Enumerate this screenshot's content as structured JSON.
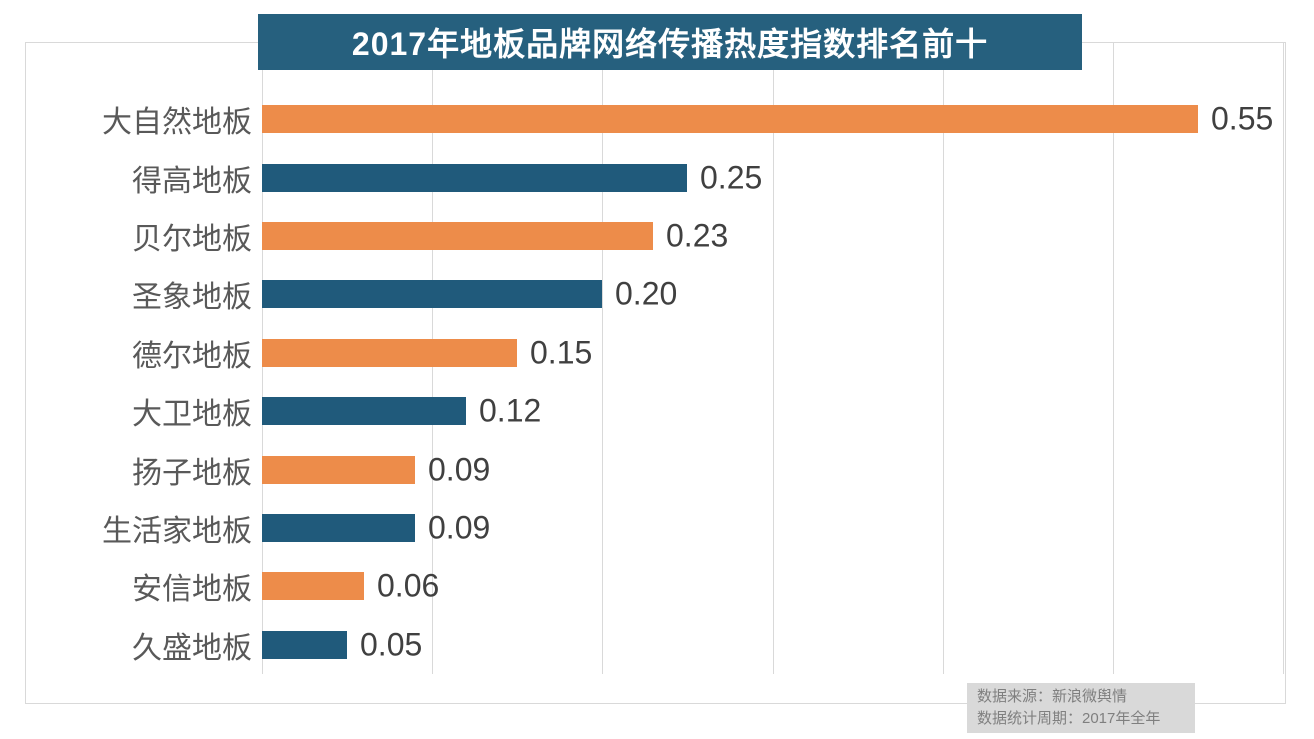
{
  "chart_data": {
    "type": "bar",
    "orientation": "horizontal",
    "title": "2017年地板品牌网络传播热度指数排名前十",
    "categories": [
      "大自然地板",
      "得高地板",
      "贝尔地板",
      "圣象地板",
      "德尔地板",
      "大卫地板",
      "扬子地板",
      "生活家地板",
      "安信地板",
      "久盛地板"
    ],
    "values": [
      0.55,
      0.25,
      0.23,
      0.2,
      0.15,
      0.12,
      0.09,
      0.09,
      0.06,
      0.05
    ],
    "value_labels": [
      "0.55",
      "0.25",
      "0.23",
      "0.20",
      "0.15",
      "0.12",
      "0.09",
      "0.09",
      "0.06",
      "0.05"
    ],
    "xlim": [
      0,
      0.6
    ],
    "gridline_interval": 0.1,
    "grid": "vertical-on",
    "legend": "none",
    "bar_color_pattern": "alternating",
    "bar_colors": [
      "#ed8c4a",
      "#205a7b"
    ]
  },
  "colors": {
    "title_bg": "#26607e",
    "title_text": "#ffffff",
    "bar_orange": "#ed8c4a",
    "bar_teal": "#205a7b",
    "gridline": "#d9d9d9",
    "category_label": "#595959",
    "value_label": "#404040",
    "source_bg": "#d9d9d9",
    "source_text": "#7f7f7f"
  },
  "source": {
    "line1": "数据来源：新浪微舆情",
    "line2": "数据统计周期：2017年全年"
  }
}
